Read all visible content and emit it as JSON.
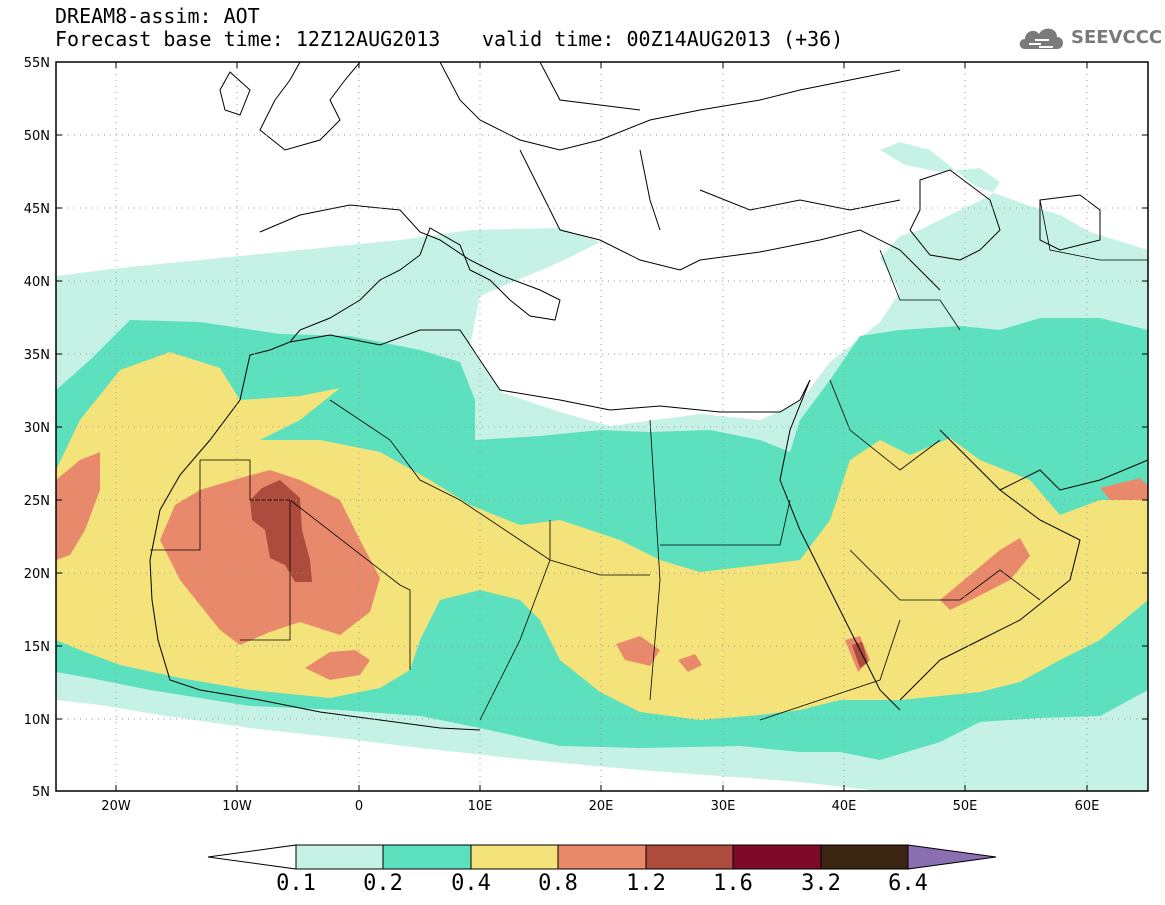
{
  "title": {
    "line1": "DREAM8-assim: AOT",
    "line2": "Forecast base time: 12Z12AUG2013",
    "valid": "valid time: 00Z14AUG2013 (+36)"
  },
  "logo": {
    "text": "SEEVCCC",
    "icon": "cloud-logo-icon"
  },
  "axes": {
    "lat_labels": [
      "55N",
      "50N",
      "45N",
      "40N",
      "35N",
      "30N",
      "25N",
      "20N",
      "15N",
      "10N",
      "5N"
    ],
    "lon_labels": [
      "20W",
      "10W",
      "0",
      "10E",
      "20E",
      "30E",
      "40E",
      "50E",
      "60E"
    ],
    "lat_range": [
      5,
      55
    ],
    "lon_range": [
      -25,
      65
    ]
  },
  "colorbar": {
    "colors": [
      "#c6f2e6",
      "#5ce0bd",
      "#f4e37a",
      "#e9896b",
      "#ad4b3d",
      "#7d0a28",
      "#3a2512",
      "#8b6fb0"
    ],
    "labels": [
      "0.1",
      "0.2",
      "0.4",
      "0.8",
      "1.2",
      "1.6",
      "3.2",
      "6.4"
    ]
  }
}
